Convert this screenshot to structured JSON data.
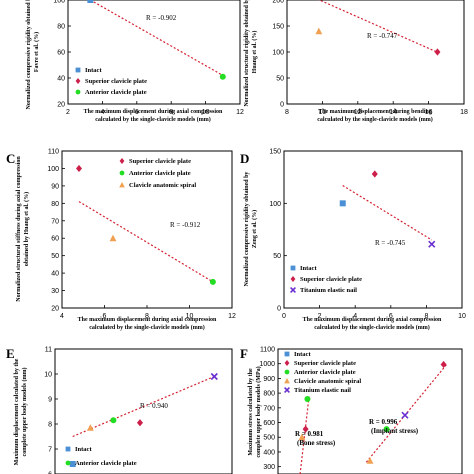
{
  "chart_data": [
    {
      "panel": "A",
      "type": "scatter",
      "xlabel": "The maximum displacement during axial compression calculated by the single-clavicle models (mm)",
      "ylabel": "Normalized compressive rigidity obtained by Favre et al. (%)",
      "xlim": [
        2,
        12
      ],
      "ylim": [
        20,
        100
      ],
      "xticks": [
        "2",
        "4",
        "6",
        "8",
        "10",
        "12"
      ],
      "yticks": [
        "20",
        "40",
        "60",
        "80",
        "100"
      ],
      "r_label": "R = -0.902",
      "legend": [
        "Intact",
        "Superior clavicle plate",
        "Anterior clavicle plate"
      ],
      "series": [
        {
          "name": "Intact",
          "marker": "square",
          "color": "#4b8fd4",
          "x": [
            3.3
          ],
          "y": [
            100
          ]
        },
        {
          "name": "Anterior clavicle plate",
          "marker": "circle",
          "color": "#22dd22",
          "x": [
            11.0
          ],
          "y": [
            41
          ]
        }
      ],
      "trend": {
        "x": [
          3.3,
          11.0
        ],
        "y": [
          100,
          42
        ]
      }
    },
    {
      "panel": "B",
      "type": "scatter",
      "xlabel": "The maximum displacement during bending calculated by the single-clavicle models (mm)",
      "ylabel": "Normalized structural rigidity obtained by Huang et al. (%)",
      "xlim": [
        8,
        18
      ],
      "ylim": [
        0,
        200
      ],
      "xticks": [
        "8",
        "10",
        "12",
        "14",
        "16",
        "18"
      ],
      "yticks": [
        "0",
        "50",
        "100",
        "150",
        "200"
      ],
      "r_label": "R = -0.747",
      "series": [
        {
          "name": "Superior clavicle plate",
          "marker": "diamond",
          "color": "#cc1f4a",
          "x": [
            16.5
          ],
          "y": [
            100
          ]
        },
        {
          "name": "Clavicle anatomic spiral",
          "marker": "triangle",
          "color": "#f0a050",
          "x": [
            9.8
          ],
          "y": [
            140
          ]
        }
      ],
      "trend": {
        "x": [
          9.5,
          16.6
        ],
        "y": [
          205,
          98
        ]
      }
    },
    {
      "panel": "C",
      "type": "scatter",
      "xlabel": "The maximum displacement during axial compression calculated by the single-clavicle models (mm)",
      "ylabel": "Normalized structural stiffness during axial compression obtained by Huang et al. (%)",
      "xlim": [
        4,
        12
      ],
      "ylim": [
        20,
        110
      ],
      "xticks": [
        "4",
        "6",
        "8",
        "10",
        "12"
      ],
      "yticks": [
        "20",
        "30",
        "40",
        "50",
        "60",
        "70",
        "80",
        "90",
        "100",
        "110"
      ],
      "r_label": "R = -0.912",
      "legend": [
        "Superior clavicle plate",
        "Anterior clavicle plate",
        "Clavicle anatomic spiral"
      ],
      "series": [
        {
          "name": "Superior clavicle plate",
          "marker": "diamond",
          "color": "#cc1f4a",
          "x": [
            4.8
          ],
          "y": [
            100
          ]
        },
        {
          "name": "Clavicle anatomic spiral",
          "marker": "triangle",
          "color": "#f0a050",
          "x": [
            6.4
          ],
          "y": [
            60
          ]
        },
        {
          "name": "Anterior clavicle plate",
          "marker": "circle",
          "color": "#22dd22",
          "x": [
            11.1
          ],
          "y": [
            35
          ]
        }
      ],
      "trend": {
        "x": [
          4.8,
          11.1
        ],
        "y": [
          81,
          35
        ]
      }
    },
    {
      "panel": "D",
      "type": "scatter",
      "xlabel": "The maximum displacement during axial compression calculated by the single-clavicle models (mm)",
      "ylabel": "Normalized compressive rigidity obtained by Zeng et al. (%)",
      "xlim": [
        0,
        10
      ],
      "ylim": [
        0,
        150
      ],
      "xticks": [
        "0",
        "2",
        "4",
        "6",
        "8",
        "10"
      ],
      "yticks": [
        "0",
        "50",
        "100",
        "150"
      ],
      "r_label": "R = -0.745",
      "legend": [
        "Intact",
        "Superior clavicle plate",
        "Titanium elastic nail"
      ],
      "series": [
        {
          "name": "Intact",
          "marker": "square",
          "color": "#4b8fd4",
          "x": [
            3.3
          ],
          "y": [
            100
          ]
        },
        {
          "name": "Superior clavicle plate",
          "marker": "diamond",
          "color": "#cc1f4a",
          "x": [
            5.1
          ],
          "y": [
            128
          ]
        },
        {
          "name": "Titanium elastic nail",
          "marker": "cross",
          "color": "#6a2fd0",
          "x": [
            8.3
          ],
          "y": [
            61
          ]
        }
      ],
      "trend": {
        "x": [
          3.3,
          8.3
        ],
        "y": [
          117,
          65
        ]
      }
    },
    {
      "panel": "E",
      "type": "scatter",
      "xlabel": "",
      "ylabel": "Maximum displacement calculated by the complete upper body models (mm)",
      "xlim": [
        0,
        1
      ],
      "ylim": [
        6,
        11
      ],
      "yticks": [
        "6",
        "7",
        "8",
        "9",
        "10",
        "11"
      ],
      "r_label": "R = 0.940",
      "legend": [
        "Intact",
        "Anterior clavicle plate"
      ],
      "series": [
        {
          "name": "Intact",
          "marker": "square",
          "color": "#4b8fd4",
          "x": [
            0.1
          ],
          "y": [
            6.4
          ]
        },
        {
          "name": "Clavicle anatomic spiral",
          "marker": "triangle",
          "color": "#f0a050",
          "x": [
            0.2
          ],
          "y": [
            7.85
          ]
        },
        {
          "name": "Anterior clavicle plate",
          "marker": "circle",
          "color": "#22dd22",
          "x": [
            0.33
          ],
          "y": [
            8.15
          ]
        },
        {
          "name": "Superior clavicle plate",
          "marker": "diamond",
          "color": "#cc1f4a",
          "x": [
            0.48
          ],
          "y": [
            8.05
          ]
        },
        {
          "name": "Titanium elastic nail",
          "marker": "cross",
          "color": "#6a2fd0",
          "x": [
            0.9
          ],
          "y": [
            9.9
          ]
        }
      ],
      "trend": {
        "x": [
          0.1,
          0.9
        ],
        "y": [
          7.5,
          9.9
        ]
      }
    },
    {
      "panel": "F",
      "type": "scatter",
      "xlabel": "",
      "ylabel": "Maximum stress calculated by the complete upper body models (MPa)",
      "xlim": [
        0,
        1
      ],
      "ylim": [
        250,
        1100
      ],
      "yticks": [
        "300",
        "400",
        "500",
        "600",
        "700",
        "800",
        "900",
        "1000",
        "1100"
      ],
      "legend": [
        "Intact",
        "Superior clavicle plate",
        "Anterior clavicle plate",
        "Clavicle anatomic spiral",
        "Titanium elastic nail"
      ],
      "annotations": [
        "R = 0.981",
        "(Bone stress)",
        "R = 0.996",
        "(Implant stress)"
      ],
      "series": [
        {
          "name": "Superior clavicle plate",
          "marker": "diamond",
          "color": "#cc1f4a",
          "x": [
            0.15,
            0.9
          ],
          "y": [
            555,
            995
          ]
        },
        {
          "name": "Anterior clavicle plate",
          "marker": "circle",
          "color": "#22dd22",
          "x": [
            0.16,
            0.59
          ],
          "y": [
            760,
            555
          ]
        },
        {
          "name": "Clavicle anatomic spiral",
          "marker": "triangle",
          "color": "#f0a050",
          "x": [
            0.13,
            0.5
          ],
          "y": [
            500,
            340
          ]
        },
        {
          "name": "Titanium elastic nail",
          "marker": "cross",
          "color": "#6a2fd0",
          "x": [
            0.69
          ],
          "y": [
            650
          ]
        }
      ],
      "trends": [
        {
          "x": [
            0.12,
            0.17
          ],
          "y": [
            250,
            790
          ]
        },
        {
          "x": [
            0.48,
            0.92
          ],
          "y": [
            330,
            1000
          ]
        }
      ]
    }
  ]
}
